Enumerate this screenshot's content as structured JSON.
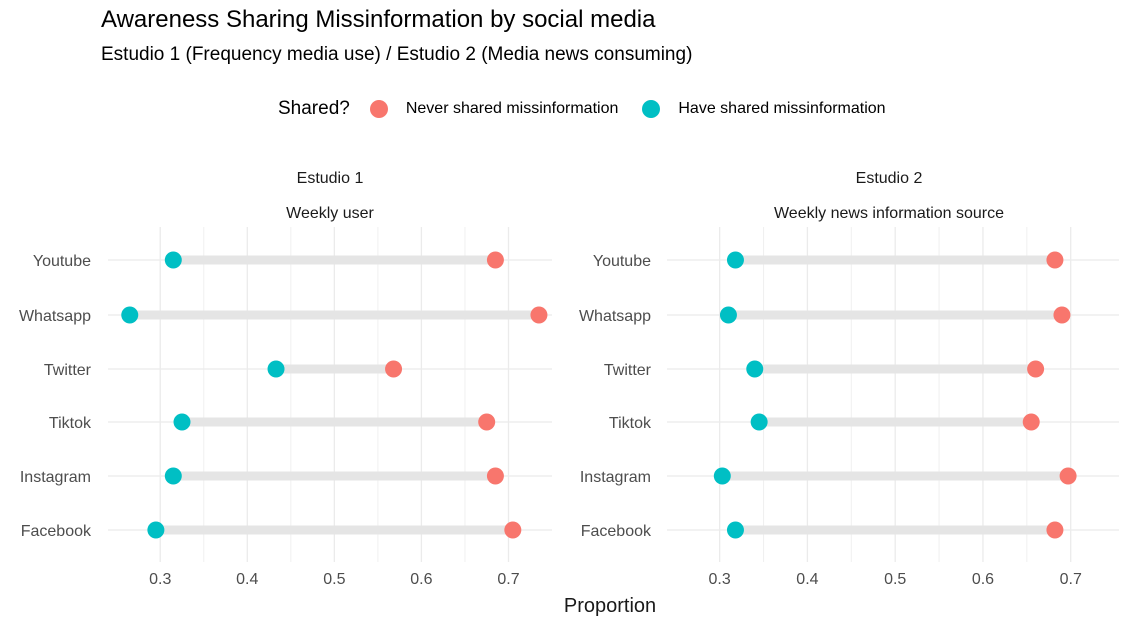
{
  "title": "Awareness Sharing Missinformation by social media",
  "subtitle": "Estudio 1 (Frequency media use) / Estudio 2 (Media news consuming)",
  "legend": {
    "title": "Shared?",
    "never_label": "Never shared missinformation",
    "have_label": "Have shared missinformation",
    "never_color": "#F8766D",
    "have_color": "#00BFC4"
  },
  "chart_data": {
    "type": "dumbbell",
    "xlabel": "Proportion",
    "x_ticks": [
      "0.3",
      "0.4",
      "0.5",
      "0.6",
      "0.7"
    ],
    "categories": [
      "Youtube",
      "Whatsapp",
      "Twitter",
      "Tiktok",
      "Instagram",
      "Facebook"
    ],
    "grid": true,
    "legend_position": "top",
    "panels": [
      {
        "strip_top": "Estudio 1",
        "strip_bottom": "Weekly user",
        "xlim": [
          0.24,
          0.75
        ],
        "series": [
          {
            "name": "Never shared missinformation",
            "values": [
              0.685,
              0.735,
              0.568,
              0.675,
              0.685,
              0.705
            ]
          },
          {
            "name": "Have shared missinformation",
            "values": [
              0.315,
              0.265,
              0.433,
              0.325,
              0.315,
              0.295
            ]
          }
        ]
      },
      {
        "strip_top": "Estudio 2",
        "strip_bottom": "Weekly news information source",
        "xlim": [
          0.24,
          0.755
        ],
        "series": [
          {
            "name": "Never shared missinformation",
            "values": [
              0.682,
              0.69,
              0.66,
              0.655,
              0.697,
              0.682
            ]
          },
          {
            "name": "Have shared missinformation",
            "values": [
              0.318,
              0.31,
              0.34,
              0.345,
              0.303,
              0.318
            ]
          }
        ]
      }
    ]
  }
}
